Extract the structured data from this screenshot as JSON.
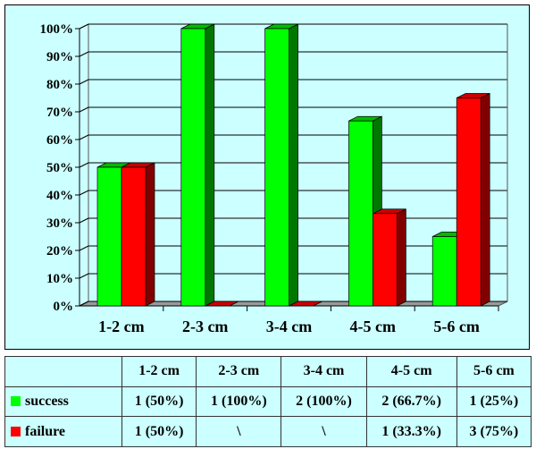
{
  "chart_data": {
    "type": "bar",
    "style": "3d-clustered",
    "categories": [
      "1-2 cm",
      "2-3 cm",
      "3-4 cm",
      "4-5 cm",
      "5-6 cm"
    ],
    "series": [
      {
        "name": "success",
        "color": "#00ff00",
        "values": [
          50,
          100,
          100,
          66.7,
          25
        ]
      },
      {
        "name": "failure",
        "color": "#ff0000",
        "values": [
          50,
          0,
          0,
          33.3,
          75
        ]
      }
    ],
    "ylim": [
      0,
      100
    ],
    "yticks": [
      "0%",
      "10%",
      "20%",
      "30%",
      "40%",
      "50%",
      "60%",
      "70%",
      "80%",
      "90%",
      "100%"
    ],
    "grid": true,
    "background": "#ccffff"
  },
  "table": {
    "header": [
      "",
      "1-2 cm",
      "2-3 cm",
      "3-4 cm",
      "4-5 cm",
      "5-6 cm"
    ],
    "rows": [
      {
        "label": "success",
        "color": "#00ff00",
        "cells": [
          "1 (50%)",
          "1 (100%)",
          "2 (100%)",
          "2 (66.7%)",
          "1 (25%)"
        ]
      },
      {
        "label": "failure",
        "color": "#ff0000",
        "cells": [
          "1 (50%)",
          "\\",
          "\\",
          "1 (33.3%)",
          "3 (75%)"
        ]
      }
    ]
  }
}
